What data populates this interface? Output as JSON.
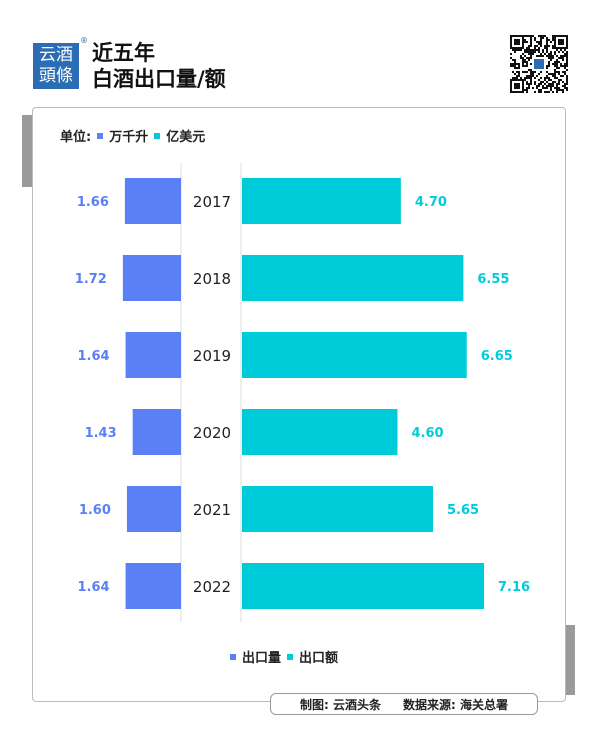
{
  "header": {
    "logo_text": [
      "云酒",
      "頭條"
    ],
    "title_line1": "近五年",
    "title_line2": "白酒出口量/额"
  },
  "unit": {
    "label": "单位:",
    "left_unit": "万千升",
    "right_unit": "亿美元"
  },
  "legend": {
    "volume": "出口量",
    "value": "出口额"
  },
  "footer": {
    "made_by": "制图: 云酒头条",
    "source": "数据来源: 海关总署"
  },
  "colors": {
    "volume": "#5b7ff5",
    "value": "#00ccd9"
  },
  "chart_data": {
    "type": "bar",
    "orientation": "horizontal-butterfly",
    "categories": [
      "2017",
      "2018",
      "2019",
      "2020",
      "2021",
      "2022"
    ],
    "series": [
      {
        "name": "出口量",
        "unit": "万千升",
        "values": [
          1.66,
          1.72,
          1.64,
          1.43,
          1.6,
          1.64
        ]
      },
      {
        "name": "出口额",
        "unit": "亿美元",
        "values": [
          4.7,
          6.55,
          6.65,
          4.6,
          5.65,
          7.16
        ]
      }
    ],
    "value_labels": {
      "volume": [
        "1.66",
        "1.72",
        "1.64",
        "1.43",
        "1.60",
        "1.64"
      ],
      "value": [
        "4.70",
        "6.55",
        "6.65",
        "4.60",
        "5.65",
        "7.16"
      ]
    },
    "legend_position": "bottom",
    "grid": false
  }
}
